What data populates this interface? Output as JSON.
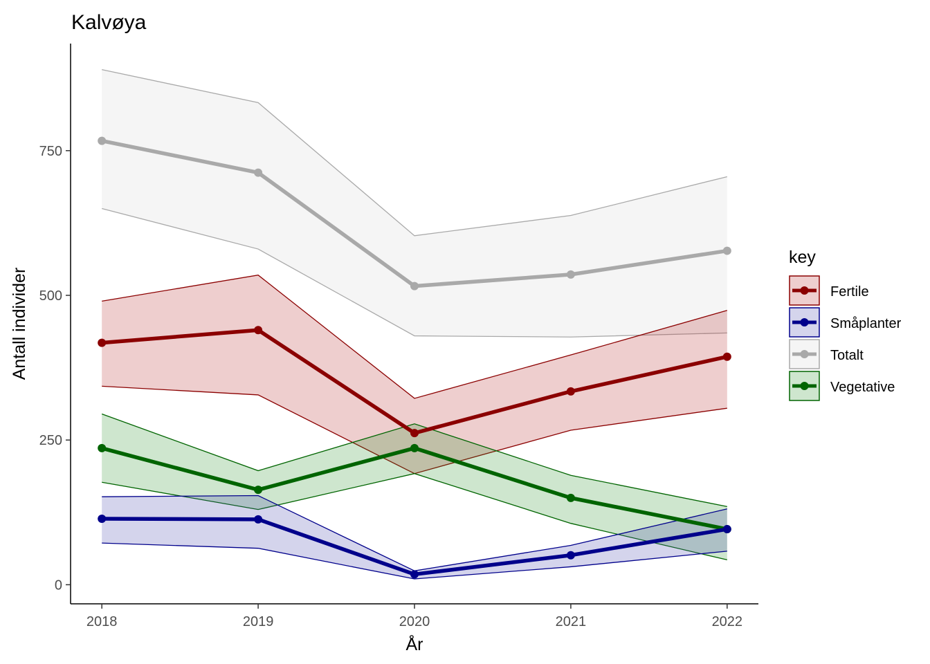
{
  "chart_data": {
    "type": "line",
    "title": "Kalvøya",
    "xlabel": "År",
    "ylabel": "Antall individer",
    "x": [
      2018,
      2019,
      2020,
      2021,
      2022
    ],
    "xlim": [
      2017.8,
      2022.2
    ],
    "ylim": [
      -33,
      935
    ],
    "yticks": [
      0,
      250,
      500,
      750
    ],
    "grid": false,
    "legend": {
      "title": "key",
      "position": "right"
    },
    "series": [
      {
        "name": "Totalt",
        "color": "#a9a9a9",
        "fill": "#d3d3d3",
        "values": [
          767,
          712,
          516,
          536,
          577
        ],
        "lower": [
          650,
          580,
          430,
          428,
          435
        ],
        "upper": [
          890,
          833,
          603,
          638,
          705
        ]
      },
      {
        "name": "Fertile",
        "color": "#8b0000",
        "fill": "#b22222",
        "values": [
          418,
          440,
          262,
          334,
          394
        ],
        "lower": [
          343,
          328,
          192,
          267,
          305
        ],
        "upper": [
          490,
          535,
          322,
          397,
          474
        ]
      },
      {
        "name": "Vegetative",
        "color": "#006400",
        "fill": "#228b22",
        "values": [
          236,
          164,
          236,
          150,
          96
        ],
        "lower": [
          177,
          130,
          192,
          106,
          43
        ],
        "upper": [
          295,
          197,
          278,
          189,
          135
        ]
      },
      {
        "name": "Småplanter",
        "color": "#00008b",
        "fill": "#3a3aaa",
        "values": [
          114,
          113,
          18,
          51,
          96
        ],
        "lower": [
          72,
          63,
          10,
          31,
          58
        ],
        "upper": [
          152,
          154,
          24,
          68,
          131
        ]
      }
    ],
    "legend_order": [
      "Fertile",
      "Småplanter",
      "Totalt",
      "Vegetative"
    ]
  }
}
